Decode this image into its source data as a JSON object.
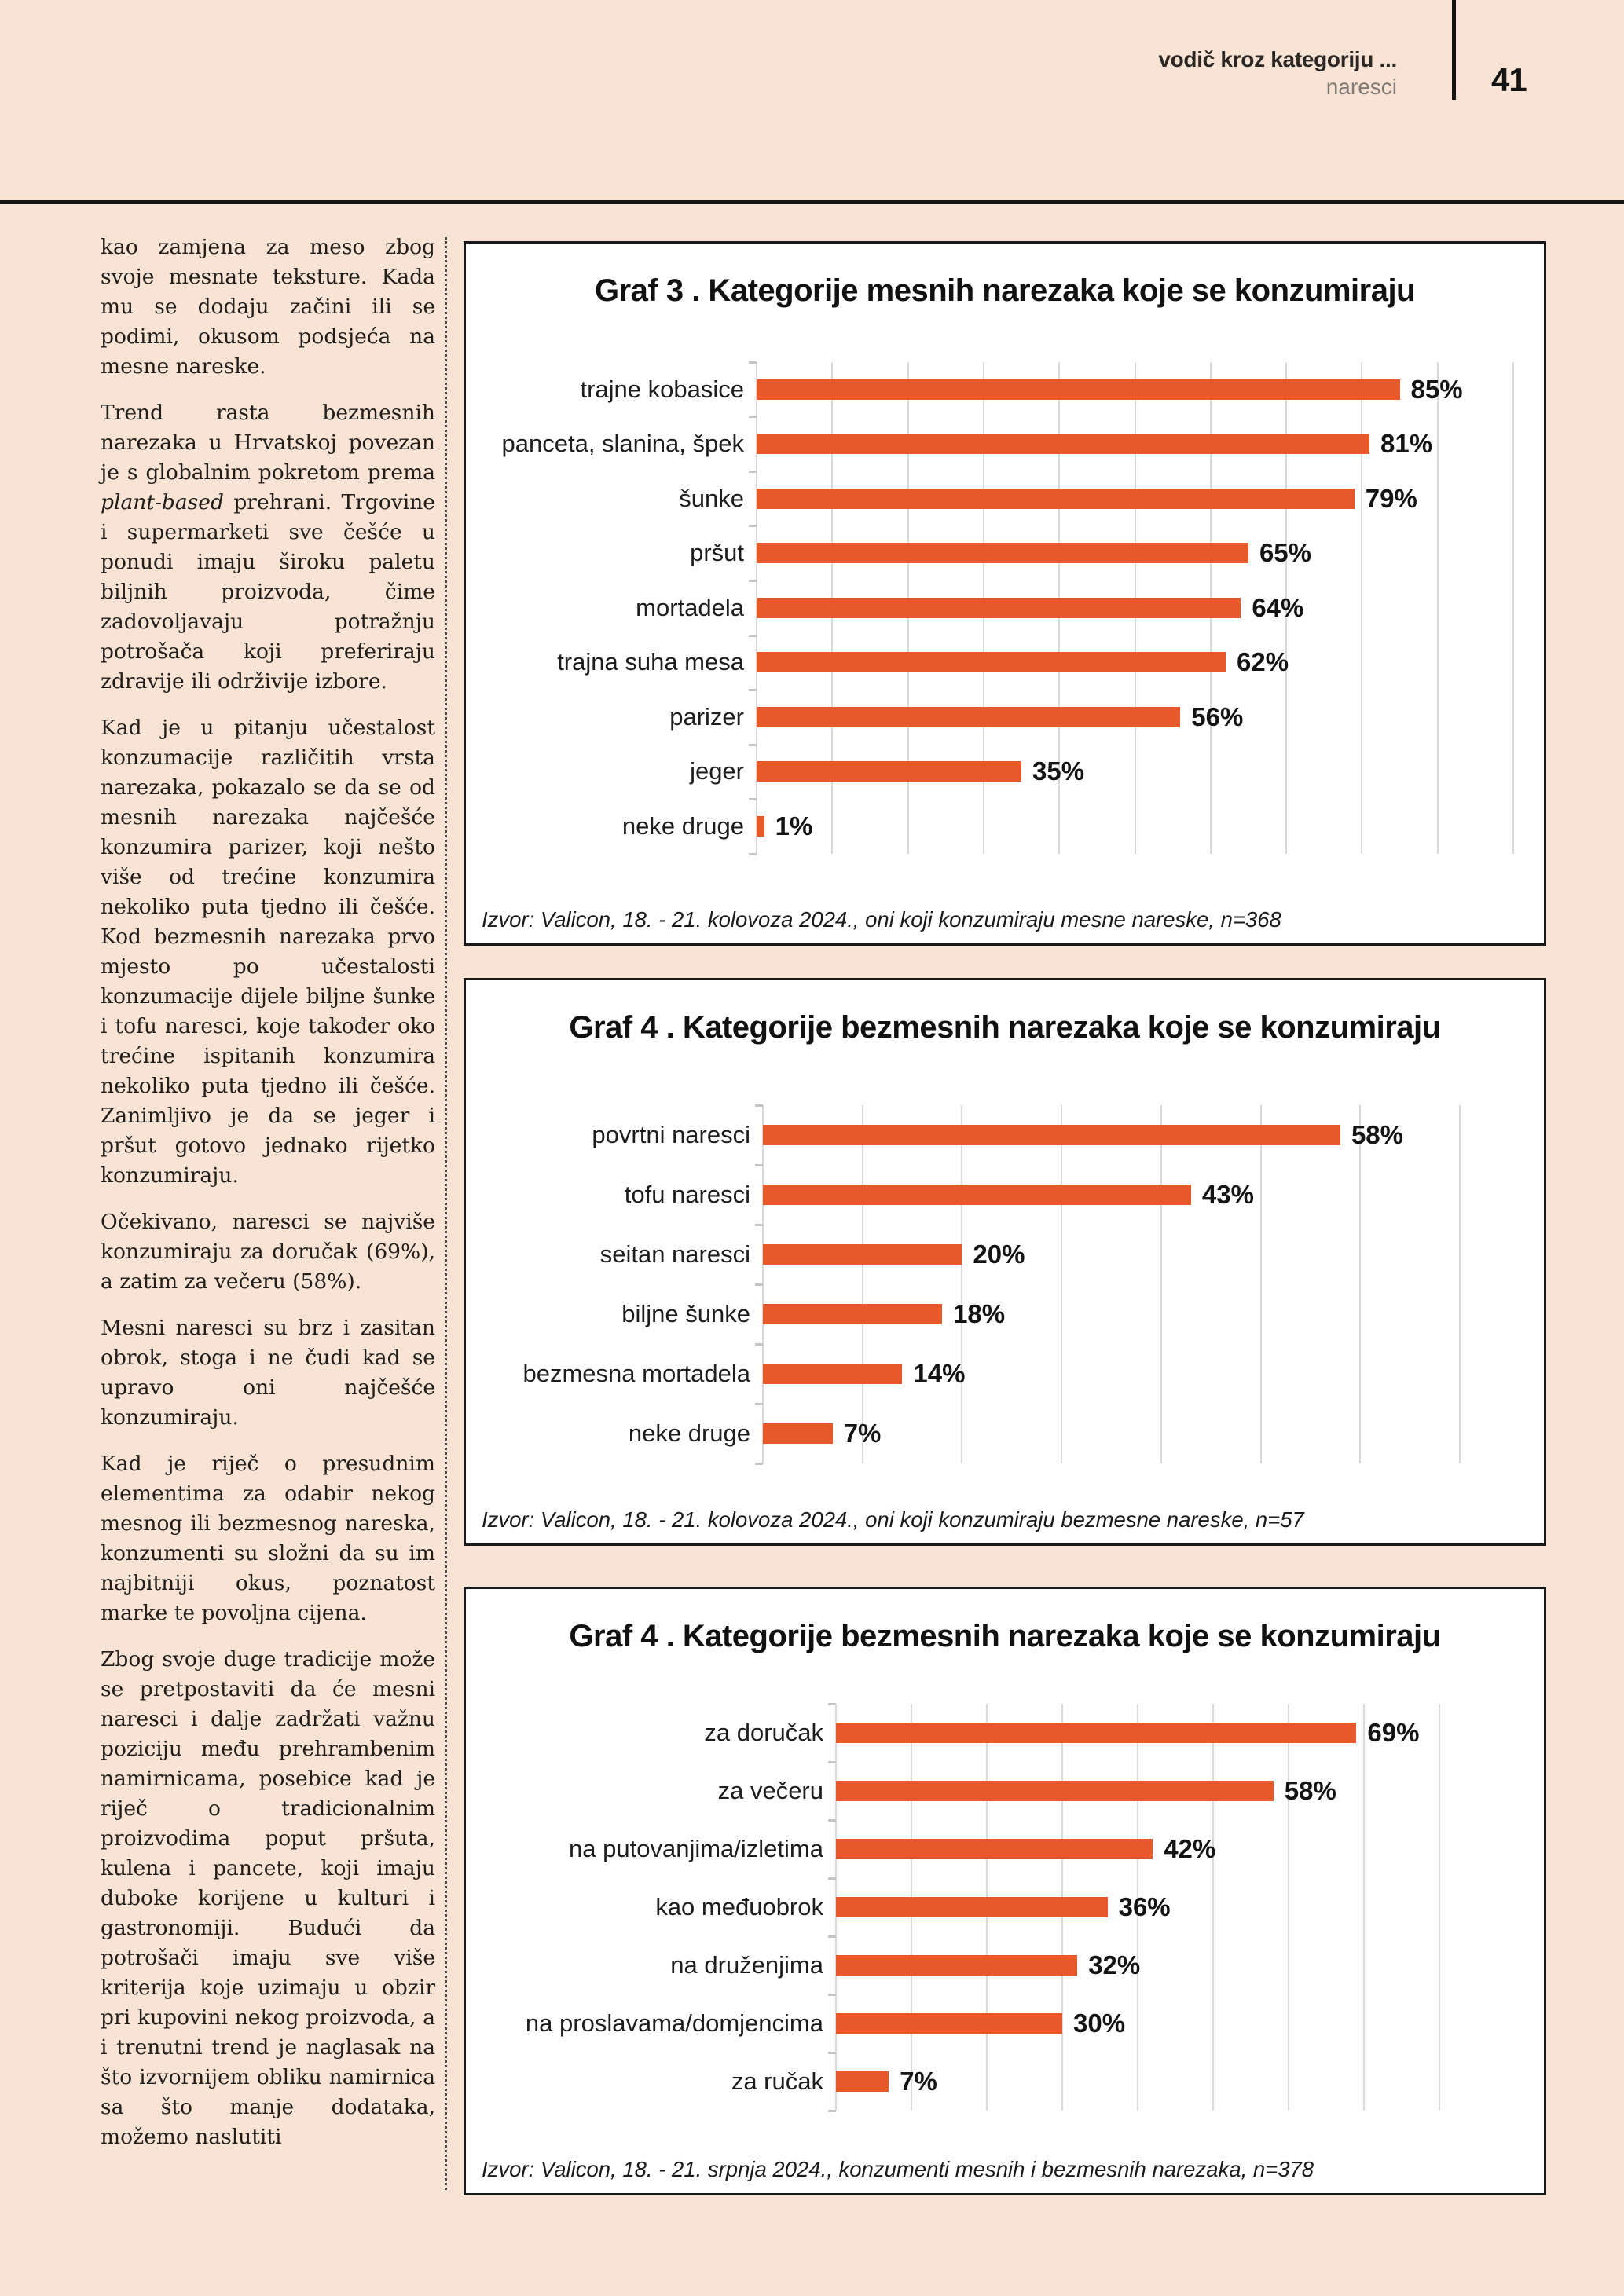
{
  "page": {
    "background": "#f8e3d5",
    "accent_orange": "#e7582b",
    "gridline_color": "#d9d9d9",
    "rule_color": "#171717"
  },
  "header": {
    "kicker": "vodič kroz kategoriju ...",
    "section": "naresci",
    "page_number": "41"
  },
  "article": {
    "paragraphs": [
      {
        "runs": [
          {
            "t": "kao zamjena za meso zbog svoje mesnate teksture. Kada mu se dodaju začini ili se podimi, okusom podsjeća na mesne nareske.",
            "i": false
          }
        ]
      },
      {
        "runs": [
          {
            "t": "Trend rasta bezmesnih narezaka u Hrvatskoj povezan je s globalnim pokretom prema ",
            "i": false
          },
          {
            "t": "plant-based",
            "i": true
          },
          {
            "t": " prehrani. Trgovine i supermarketi sve češće u ponudi imaju široku paletu biljnih proizvoda, čime zadovoljavaju potražnju potrošača koji preferiraju zdravije ili održivije izbore.",
            "i": false
          }
        ]
      },
      {
        "runs": [
          {
            "t": "Kad je u pitanju učestalost konzumacije različitih vrsta narezaka, pokazalo se da se od mesnih narezaka najčešće konzumira parizer, koji nešto više od trećine konzumira nekoliko puta tjedno ili češće. Kod bezmesnih narezaka prvo mjesto po učestalosti konzumacije dijele biljne šunke i tofu naresci, koje također oko trećine ispitanih konzumira nekoliko puta tjedno ili češće. Zanimljivo je da se jeger i pršut gotovo jednako rijetko konzumiraju.",
            "i": false
          }
        ]
      },
      {
        "runs": [
          {
            "t": "Očekivano, naresci se najviše konzumiraju za doručak (69%), a zatim za večeru (58%).",
            "i": false
          }
        ]
      },
      {
        "runs": [
          {
            "t": "Mesni naresci su brz i zasitan obrok, stoga i ne čudi kad se upravo oni najčešće konzumiraju.",
            "i": false
          }
        ]
      },
      {
        "runs": [
          {
            "t": "Kad je riječ o presudnim elementima za odabir nekog mesnog ili bezmesnog nareska, konzumenti su složni da su im najbitniji okus, poznatost marke te povoljna cijena.",
            "i": false
          }
        ]
      },
      {
        "runs": [
          {
            "t": "Zbog svoje duge tradicije može se pretpostaviti da će mesni naresci i dalje zadržati važnu poziciju među prehrambenim namirnicama, posebice kad je riječ o tradicionalnim proizvodima poput pršuta, kulena i pancete, koji imaju duboke korijene u kulturi i gastronomiji. Budući da potrošači imaju sve više kriterija koje uzimaju u obzir pri kupovini nekog proizvoda, a i trenutni trend je naglasak na što izvornijem obliku namirnica sa što manje dodataka, možemo naslutiti",
            "i": false
          }
        ]
      }
    ]
  },
  "chart_data": [
    {
      "type": "bar",
      "orientation": "horizontal",
      "title": "Graf 3 . Kategorije mesnih narezaka koje se konzumiraju",
      "categories": [
        "trajne kobasice",
        "panceta, slanina, špek",
        "šunke",
        "pršut",
        "mortadela",
        "trajna suha mesa",
        "parizer",
        "jeger",
        "neke druge"
      ],
      "values": [
        85,
        81,
        79,
        65,
        64,
        62,
        56,
        35,
        1
      ],
      "value_labels": [
        "85%",
        "81%",
        "79%",
        "65%",
        "64%",
        "62%",
        "56%",
        "35%",
        "1%"
      ],
      "xlim": [
        0,
        100
      ],
      "gridline_step": 10,
      "grid": true,
      "legend": false,
      "bar_color": "#e7582b",
      "source": "Izvor: Valicon, 18. - 21. kolovoza 2024., oni koji konzumiraju mesne nareske, n=368"
    },
    {
      "type": "bar",
      "orientation": "horizontal",
      "title": "Graf 4 . Kategorije bezmesnih narezaka koje se konzumiraju",
      "categories": [
        "povrtni naresci",
        "tofu naresci",
        "seitan naresci",
        "biljne šunke",
        "bezmesna mortadela",
        "neke druge"
      ],
      "values": [
        58,
        43,
        20,
        18,
        14,
        7
      ],
      "value_labels": [
        "58%",
        "43%",
        "20%",
        "18%",
        "14%",
        "7%"
      ],
      "xlim": [
        0,
        70
      ],
      "gridline_step": 10,
      "grid": true,
      "legend": false,
      "bar_color": "#e7582b",
      "source": "Izvor: Valicon, 18. - 21. kolovoza 2024., oni koji konzumiraju bezmesne nareske, n=57"
    },
    {
      "type": "bar",
      "orientation": "horizontal",
      "title": "Graf 4 . Kategorije bezmesnih narezaka koje se konzumiraju",
      "categories": [
        "za doručak",
        "za večeru",
        "na putovanjima/izletima",
        "kao međuobrok",
        "na druženjima",
        "na proslavama/domjencima",
        "za ručak"
      ],
      "values": [
        69,
        58,
        42,
        36,
        32,
        30,
        7
      ],
      "value_labels": [
        "69%",
        "58%",
        "42%",
        "36%",
        "32%",
        "30%",
        "7%"
      ],
      "xlim": [
        0,
        80
      ],
      "gridline_step": 10,
      "grid": true,
      "legend": false,
      "bar_color": "#e7582b",
      "source": "Izvor: Valicon, 18. - 21. srpnja 2024., konzumenti mesnih i bezmesnih narezaka, n=378"
    }
  ]
}
